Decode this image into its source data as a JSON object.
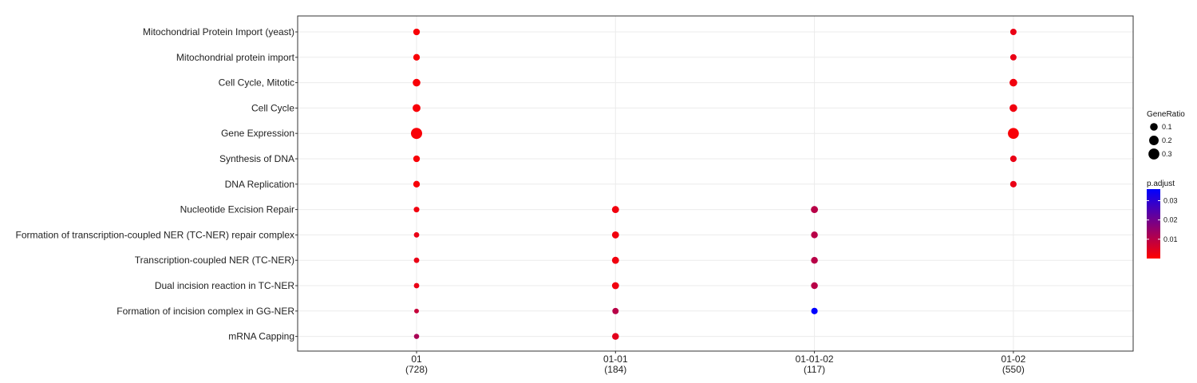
{
  "chart_data": {
    "type": "scatter",
    "title": "",
    "xlabel": "",
    "ylabel": "",
    "grid": true,
    "legend_position": "right",
    "categories_y": [
      "Mitochondrial Protein Import (yeast)",
      "Mitochondrial protein import",
      "Cell Cycle, Mitotic",
      "Cell Cycle",
      "Gene Expression",
      "Synthesis of DNA",
      "DNA Replication",
      "Nucleotide Excision Repair",
      "Formation of transcription-coupled NER (TC-NER) repair complex",
      "Transcription-coupled NER (TC-NER)",
      "Dual incision reaction in TC-NER",
      "Formation of incision complex in GG-NER",
      "mRNA Capping"
    ],
    "categories_x": [
      {
        "label": "01",
        "count": "(728)"
      },
      {
        "label": "01-01",
        "count": "(184)"
      },
      {
        "label": "01-01-02",
        "count": "(117)"
      },
      {
        "label": "01-02",
        "count": "(550)"
      }
    ],
    "points": [
      {
        "x": "01",
        "y": "Mitochondrial Protein Import (yeast)",
        "gene_ratio": 0.06,
        "p_adjust": 0.001
      },
      {
        "x": "01",
        "y": "Mitochondrial protein import",
        "gene_ratio": 0.06,
        "p_adjust": 0.001
      },
      {
        "x": "01",
        "y": "Cell Cycle, Mitotic",
        "gene_ratio": 0.1,
        "p_adjust": 0.001
      },
      {
        "x": "01",
        "y": "Cell Cycle",
        "gene_ratio": 0.11,
        "p_adjust": 0.001
      },
      {
        "x": "01",
        "y": "Gene Expression",
        "gene_ratio": 0.32,
        "p_adjust": 0.001
      },
      {
        "x": "01",
        "y": "Synthesis of DNA",
        "gene_ratio": 0.06,
        "p_adjust": 0.001
      },
      {
        "x": "01",
        "y": "DNA Replication",
        "gene_ratio": 0.06,
        "p_adjust": 0.001
      },
      {
        "x": "01",
        "y": "Nucleotide Excision Repair",
        "gene_ratio": 0.03,
        "p_adjust": 0.002
      },
      {
        "x": "01",
        "y": "Formation of transcription-coupled NER (TC-NER) repair complex",
        "gene_ratio": 0.025,
        "p_adjust": 0.003
      },
      {
        "x": "01",
        "y": "Transcription-coupled NER (TC-NER)",
        "gene_ratio": 0.025,
        "p_adjust": 0.003
      },
      {
        "x": "01",
        "y": "Dual incision reaction in TC-NER",
        "gene_ratio": 0.025,
        "p_adjust": 0.003
      },
      {
        "x": "01",
        "y": "Formation of incision complex in GG-NER",
        "gene_ratio": 0.012,
        "p_adjust": 0.008
      },
      {
        "x": "01",
        "y": "mRNA Capping",
        "gene_ratio": 0.02,
        "p_adjust": 0.012
      },
      {
        "x": "01-01",
        "y": "Nucleotide Excision Repair",
        "gene_ratio": 0.075,
        "p_adjust": 0.002
      },
      {
        "x": "01-01",
        "y": "Formation of transcription-coupled NER (TC-NER) repair complex",
        "gene_ratio": 0.075,
        "p_adjust": 0.002
      },
      {
        "x": "01-01",
        "y": "Transcription-coupled NER (TC-NER)",
        "gene_ratio": 0.075,
        "p_adjust": 0.002
      },
      {
        "x": "01-01",
        "y": "Dual incision reaction in TC-NER",
        "gene_ratio": 0.075,
        "p_adjust": 0.002
      },
      {
        "x": "01-01",
        "y": "Formation of incision complex in GG-NER",
        "gene_ratio": 0.05,
        "p_adjust": 0.01
      },
      {
        "x": "01-01",
        "y": "mRNA Capping",
        "gene_ratio": 0.065,
        "p_adjust": 0.004
      },
      {
        "x": "01-01-02",
        "y": "Nucleotide Excision Repair",
        "gene_ratio": 0.075,
        "p_adjust": 0.01
      },
      {
        "x": "01-01-02",
        "y": "Formation of transcription-coupled NER (TC-NER) repair complex",
        "gene_ratio": 0.065,
        "p_adjust": 0.01
      },
      {
        "x": "01-01-02",
        "y": "Transcription-coupled NER (TC-NER)",
        "gene_ratio": 0.065,
        "p_adjust": 0.01
      },
      {
        "x": "01-01-02",
        "y": "Dual incision reaction in TC-NER",
        "gene_ratio": 0.065,
        "p_adjust": 0.01
      },
      {
        "x": "01-01-02",
        "y": "Formation of incision complex in GG-NER",
        "gene_ratio": 0.055,
        "p_adjust": 0.036
      },
      {
        "x": "01-02",
        "y": "Mitochondrial Protein Import (yeast)",
        "gene_ratio": 0.05,
        "p_adjust": 0.003
      },
      {
        "x": "01-02",
        "y": "Mitochondrial protein import",
        "gene_ratio": 0.05,
        "p_adjust": 0.003
      },
      {
        "x": "01-02",
        "y": "Cell Cycle, Mitotic",
        "gene_ratio": 0.1,
        "p_adjust": 0.002
      },
      {
        "x": "01-02",
        "y": "Cell Cycle",
        "gene_ratio": 0.1,
        "p_adjust": 0.002
      },
      {
        "x": "01-02",
        "y": "Gene Expression",
        "gene_ratio": 0.3,
        "p_adjust": 0.001
      },
      {
        "x": "01-02",
        "y": "Synthesis of DNA",
        "gene_ratio": 0.055,
        "p_adjust": 0.003
      },
      {
        "x": "01-02",
        "y": "DNA Replication",
        "gene_ratio": 0.055,
        "p_adjust": 0.003
      }
    ],
    "size_legend": {
      "title": "GeneRatio",
      "values": [
        0.1,
        0.2,
        0.3
      ],
      "labels": [
        "0.1",
        "0.2",
        "0.3"
      ]
    },
    "color_legend": {
      "title": "p.adjust",
      "min": 0.0,
      "max": 0.036,
      "ticks": [
        0.01,
        0.02,
        0.03
      ],
      "tick_labels": [
        "0.01",
        "0.02",
        "0.03"
      ],
      "low_color": "#ff0000",
      "high_color": "#0000ff"
    },
    "colors": {
      "panel_border": "#333333",
      "grid": "#ebebeb",
      "legend_dot": "#000000"
    }
  }
}
